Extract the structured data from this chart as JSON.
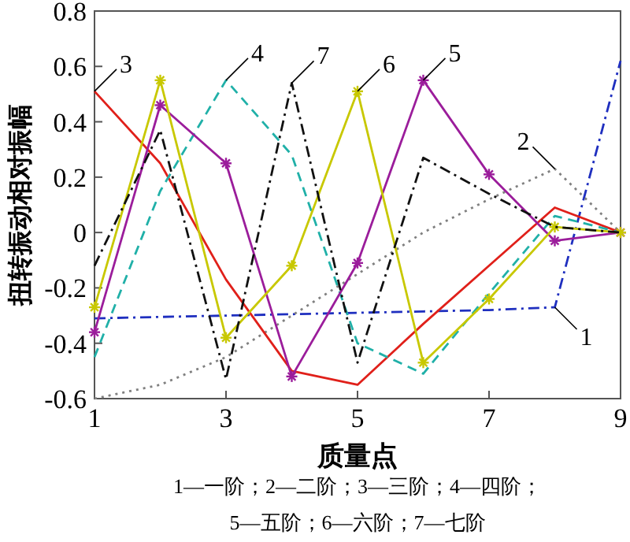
{
  "chart_data": {
    "type": "line",
    "xlabel": "质量点",
    "ylabel": "扭转振动相对振幅",
    "x": [
      1,
      2,
      3,
      4,
      5,
      6,
      7,
      8,
      9
    ],
    "xlim": [
      1,
      9
    ],
    "xticks": [
      1,
      3,
      5,
      7,
      9
    ],
    "ylim": [
      -0.6,
      0.8
    ],
    "yticks": [
      -0.6,
      -0.4,
      -0.2,
      0,
      0.2,
      0.4,
      0.6,
      0.8
    ],
    "grid": false,
    "series": [
      {
        "name": "1",
        "color": "#1f2fbf",
        "line_style": "dashdot",
        "marker": "none",
        "values": [
          -0.31,
          -0.305,
          -0.3,
          -0.295,
          -0.29,
          -0.285,
          -0.28,
          -0.27,
          0.62
        ]
      },
      {
        "name": "2",
        "color": "#808080",
        "line_style": "dotted",
        "marker": "none",
        "values": [
          -0.6,
          -0.55,
          -0.45,
          -0.3,
          -0.15,
          0.0,
          0.12,
          0.23,
          0.0
        ]
      },
      {
        "name": "3",
        "color": "#e0201a",
        "line_style": "solid",
        "marker": "none",
        "values": [
          0.51,
          0.25,
          -0.17,
          -0.5,
          -0.55,
          -0.33,
          -0.12,
          0.09,
          0.0
        ]
      },
      {
        "name": "4",
        "color": "#20b0a8",
        "line_style": "dashed",
        "marker": "none",
        "values": [
          -0.45,
          0.15,
          0.55,
          0.28,
          -0.4,
          -0.51,
          -0.22,
          0.06,
          0.0
        ]
      },
      {
        "name": "5",
        "color": "#9b1d9b",
        "line_style": "solid",
        "marker": "cross",
        "values": [
          -0.36,
          0.46,
          0.25,
          -0.52,
          -0.11,
          0.55,
          0.21,
          -0.03,
          0.0
        ]
      },
      {
        "name": "6",
        "color": "#c8c800",
        "line_style": "solid",
        "marker": "cross",
        "values": [
          -0.27,
          0.55,
          -0.38,
          -0.12,
          0.51,
          -0.47,
          -0.24,
          0.02,
          0.0
        ]
      },
      {
        "name": "7",
        "color": "#111111",
        "line_style": "dashdot",
        "marker": "none",
        "values": [
          -0.12,
          0.37,
          -0.53,
          0.54,
          -0.47,
          0.27,
          0.14,
          0.02,
          0.0
        ]
      }
    ],
    "annotations": [
      "1—一阶；2—二阶；3—三阶；4—四阶；",
      "5—五阶；6—六阶；7—七阶"
    ]
  }
}
